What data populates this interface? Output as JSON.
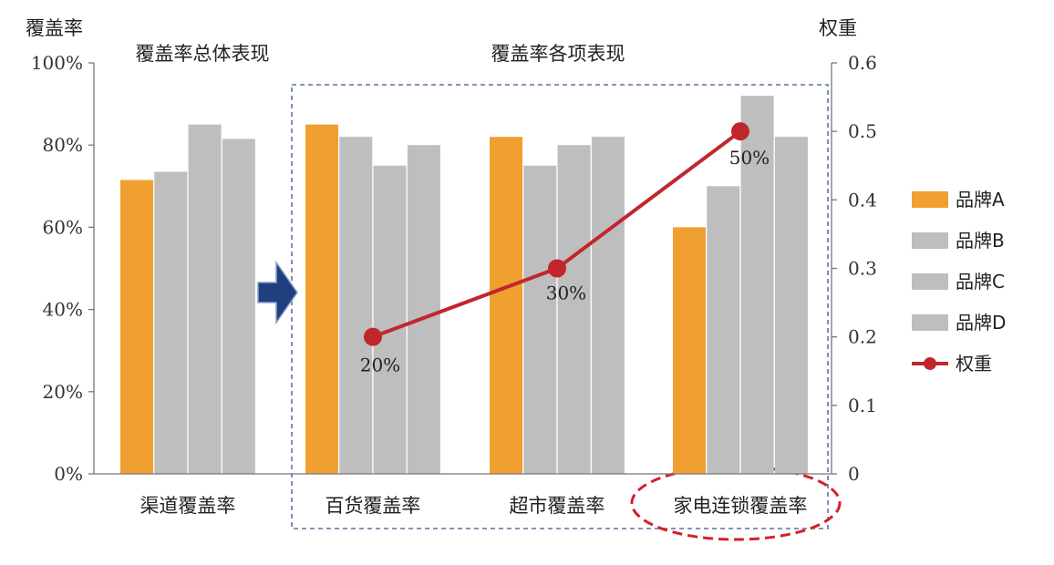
{
  "chart_data": {
    "type": "bar",
    "left_axis_label": "覆盖率",
    "right_axis_label": "权重",
    "section_left_title": "覆盖率总体表现",
    "section_right_title": "覆盖率各项表现",
    "categories": [
      "渠道覆盖率",
      "百货覆盖率",
      "超市覆盖率",
      "家电连锁覆盖率"
    ],
    "ylim": [
      0,
      100
    ],
    "y_ticks": [
      "0%",
      "20%",
      "40%",
      "60%",
      "80%",
      "100%"
    ],
    "y2lim": [
      0,
      0.6
    ],
    "y2_ticks": [
      "0",
      "0.1",
      "0.2",
      "0.3",
      "0.4",
      "0.5",
      "0.6"
    ],
    "series": [
      {
        "name": "品牌A",
        "color": "#F0A030",
        "values": [
          71.5,
          85,
          82,
          60
        ]
      },
      {
        "name": "品牌B",
        "color": "#BEBEBE",
        "values": [
          73.5,
          82,
          75,
          70
        ]
      },
      {
        "name": "品牌C",
        "color": "#BEBEBE",
        "values": [
          85,
          75,
          80,
          92
        ]
      },
      {
        "name": "品牌D",
        "color": "#BEBEBE",
        "values": [
          81.5,
          80,
          82,
          82
        ]
      }
    ],
    "line_series": {
      "name": "权重",
      "color": "#C0272D",
      "categories": [
        "百货覆盖率",
        "超市覆盖率",
        "家电连锁覆盖率"
      ],
      "values": [
        0.2,
        0.3,
        0.5
      ],
      "labels": [
        "20%",
        "30%",
        "50%"
      ]
    },
    "highlighted_category": "家电连锁覆盖率",
    "legend_position": "right",
    "grid": false
  }
}
